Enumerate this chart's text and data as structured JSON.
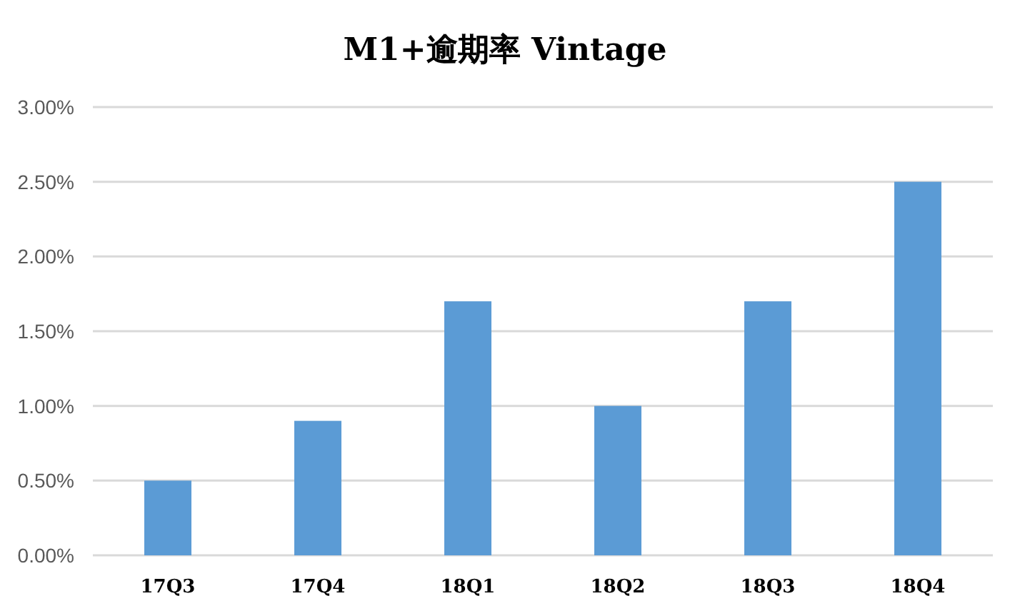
{
  "chart_data": {
    "type": "bar",
    "title": "M1+逾期率 Vintage",
    "categories": [
      "17Q3",
      "17Q4",
      "18Q1",
      "18Q2",
      "18Q3",
      "18Q4"
    ],
    "values": [
      0.5,
      0.9,
      1.7,
      1.0,
      1.7,
      2.5
    ],
    "color": "#5b9bd5",
    "ylim": [
      0,
      3
    ],
    "yticks": [
      {
        "value": 0,
        "label": "0.00%"
      },
      {
        "value": 0.5,
        "label": "0.50%"
      },
      {
        "value": 1,
        "label": "1.00%"
      },
      {
        "value": 1.5,
        "label": "1.50%"
      },
      {
        "value": 2,
        "label": "2.00%"
      },
      {
        "value": 2.5,
        "label": "2.50%"
      },
      {
        "value": 3,
        "label": "3.00%"
      }
    ],
    "grid": "y"
  }
}
